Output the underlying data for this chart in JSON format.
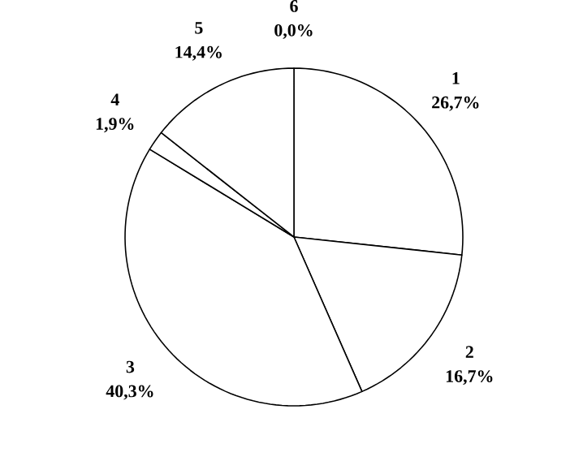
{
  "chart_data": {
    "type": "pie",
    "categories": [
      "1",
      "2",
      "3",
      "4",
      "5",
      "6"
    ],
    "values": [
      26.7,
      16.7,
      40.3,
      1.9,
      14.4,
      0.0
    ],
    "value_labels": [
      "26,7%",
      "16,7%",
      "40,3%",
      "1,9%",
      "14,4%",
      "0,0%"
    ],
    "colors": [
      "#ffffff",
      "#ffffff",
      "#ffffff",
      "#ffffff",
      "#ffffff",
      "#ffffff"
    ]
  }
}
